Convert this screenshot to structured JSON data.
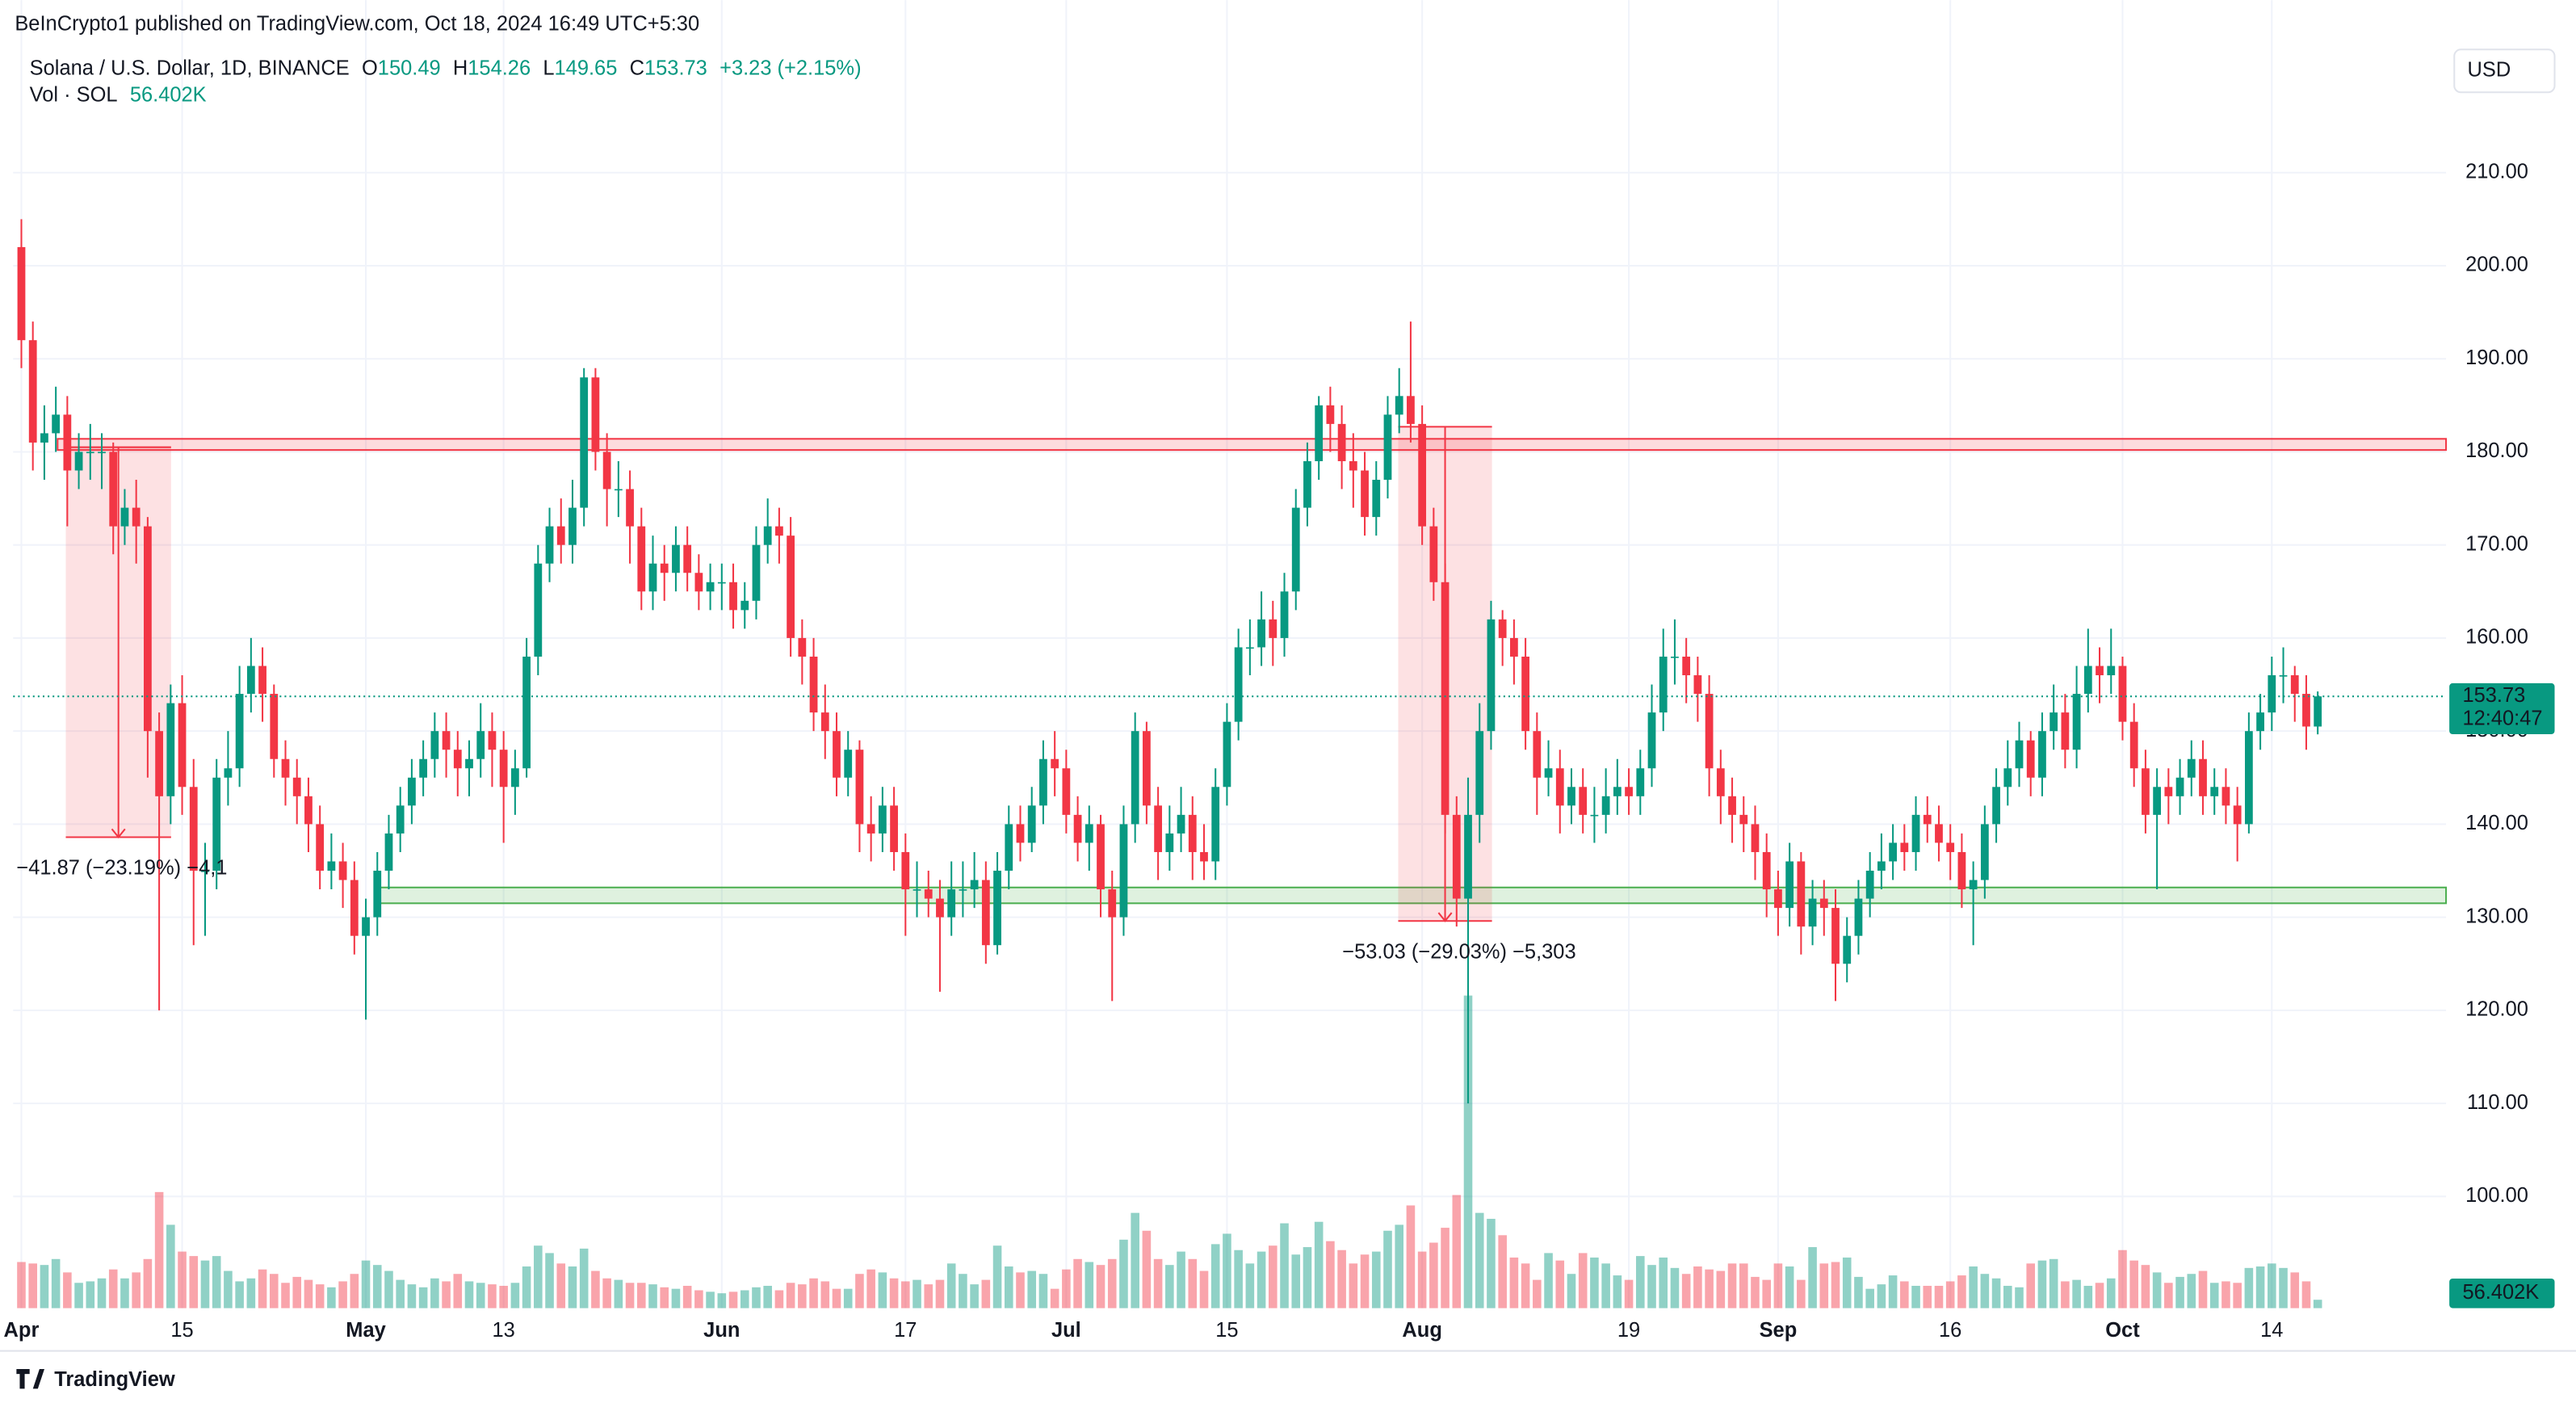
{
  "chart_data": {
    "type": "candlestick",
    "author_line": "BeInCrypto1 published on TradingView.com, Oct 18, 2024 16:49 UTC+5:30",
    "title": "Solana / U.S. Dollar, 1D, BINANCE",
    "ohlc_keys": [
      "O",
      "H",
      "L",
      "C"
    ],
    "change": "+3.23 (+2.15%)",
    "volume_title": "Vol · SOL",
    "volume_label": "56.402K",
    "currency": "USD",
    "countdown": "12:40:47",
    "brand": "TradingView",
    "up_color": "#089981",
    "down_color": "#f23645",
    "grid": true,
    "ylim": [
      88,
      225
    ],
    "yticks": [
      {
        "value": 100,
        "label": "100.00"
      },
      {
        "value": 110,
        "label": "110.00"
      },
      {
        "value": 120,
        "label": "120.00"
      },
      {
        "value": 130,
        "label": "130.00"
      },
      {
        "value": 140,
        "label": "140.00"
      },
      {
        "value": 150,
        "label": "150.00"
      },
      {
        "value": 160,
        "label": "160.00"
      },
      {
        "value": 170,
        "label": "170.00"
      },
      {
        "value": 180,
        "label": "180.00"
      },
      {
        "value": 190,
        "label": "190.00"
      },
      {
        "value": 200,
        "label": "200.00"
      },
      {
        "value": 210,
        "label": "210.00"
      }
    ],
    "categories": [
      "Apr",
      null,
      null,
      null,
      null,
      null,
      null,
      null,
      null,
      null,
      null,
      null,
      null,
      null,
      "15",
      null,
      null,
      null,
      null,
      null,
      null,
      null,
      null,
      null,
      null,
      null,
      null,
      null,
      null,
      null,
      "May",
      null,
      null,
      null,
      null,
      null,
      null,
      null,
      null,
      null,
      null,
      null,
      "13",
      null,
      null,
      null,
      null,
      null,
      null,
      null,
      null,
      null,
      null,
      null,
      null,
      null,
      null,
      null,
      null,
      null,
      null,
      "Jun",
      null,
      null,
      null,
      null,
      null,
      null,
      null,
      null,
      null,
      null,
      null,
      null,
      null,
      null,
      null,
      "17",
      null,
      null,
      null,
      null,
      null,
      null,
      null,
      null,
      null,
      null,
      null,
      null,
      null,
      "Jul",
      null,
      null,
      null,
      null,
      null,
      null,
      null,
      null,
      null,
      null,
      null,
      null,
      null,
      "15",
      null,
      null,
      null,
      null,
      null,
      null,
      null,
      null,
      null,
      null,
      null,
      null,
      null,
      null,
      null,
      null,
      "Aug",
      null,
      null,
      null,
      null,
      null,
      null,
      null,
      null,
      null,
      null,
      null,
      null,
      null,
      null,
      null,
      null,
      null,
      "19",
      null,
      null,
      null,
      null,
      null,
      null,
      null,
      null,
      null,
      null,
      null,
      null,
      "Sep",
      null,
      null,
      null,
      null,
      null,
      null,
      null,
      null,
      null,
      null,
      null,
      null,
      null,
      null,
      "16",
      null,
      null,
      null,
      null,
      null,
      null,
      null,
      null,
      null,
      null,
      null,
      null,
      null,
      null,
      "Oct",
      null,
      null,
      null,
      null,
      null,
      null,
      null,
      null,
      null,
      null,
      null,
      null,
      "14",
      null,
      null,
      null,
      null
    ],
    "open": [
      202,
      192,
      181,
      182,
      184,
      178,
      180,
      180,
      180,
      172,
      174,
      172,
      150,
      143,
      153,
      144,
      135,
      135,
      145,
      146,
      154,
      157,
      154,
      147,
      145,
      143,
      140,
      135,
      136,
      134,
      128,
      130,
      135,
      139,
      142,
      145,
      147,
      150,
      148,
      146,
      147,
      150,
      148,
      144,
      146,
      158,
      168,
      172,
      170,
      174,
      188,
      180,
      176,
      176,
      172,
      165,
      168,
      167,
      170,
      167,
      165,
      166,
      166,
      163,
      164,
      170,
      172,
      171,
      160,
      158,
      152,
      150,
      145,
      148,
      140,
      139,
      142,
      137,
      133,
      133,
      132,
      130,
      133,
      133,
      134,
      127,
      135,
      140,
      138,
      142,
      147,
      146,
      141,
      138,
      140,
      133,
      130,
      140,
      150,
      142,
      137,
      139,
      141,
      137,
      136,
      144,
      151,
      159,
      159,
      162,
      160,
      165,
      174,
      179,
      185,
      183,
      179,
      178,
      173,
      177,
      184,
      186,
      183,
      172,
      166,
      141,
      132,
      141,
      150,
      162,
      160,
      158,
      150,
      145,
      146,
      142,
      144,
      141,
      141,
      143,
      144,
      143,
      146,
      152,
      158,
      158,
      156,
      154,
      146,
      143,
      141,
      140,
      137,
      133,
      131,
      136,
      129,
      132,
      131,
      125,
      128,
      132,
      135,
      136,
      138,
      137,
      141,
      140,
      138,
      137,
      133,
      134,
      140,
      144,
      146,
      149,
      145,
      150,
      152,
      148,
      154,
      157,
      156,
      157,
      151,
      146,
      141,
      144,
      143,
      145,
      147,
      143,
      144,
      142,
      140,
      150,
      152,
      156,
      156,
      154,
      150.49
    ],
    "high": [
      205,
      194,
      185,
      187,
      186,
      182,
      183,
      182,
      181,
      176,
      177,
      173,
      152,
      155,
      156,
      147,
      138,
      147,
      150,
      157,
      160,
      159,
      155,
      149,
      147,
      145,
      142,
      139,
      138,
      136,
      132,
      137,
      141,
      144,
      147,
      149,
      152,
      152,
      150,
      149,
      153,
      152,
      150,
      148,
      160,
      170,
      174,
      175,
      177,
      189,
      189,
      182,
      179,
      178,
      174,
      171,
      170,
      172,
      172,
      169,
      168,
      168,
      168,
      166,
      172,
      175,
      174,
      173,
      162,
      160,
      155,
      152,
      150,
      149,
      143,
      144,
      144,
      139,
      136,
      135,
      134,
      136,
      136,
      137,
      136,
      137,
      142,
      142,
      144,
      149,
      150,
      148,
      143,
      142,
      141,
      135,
      142,
      152,
      151,
      144,
      142,
      144,
      143,
      140,
      146,
      153,
      161,
      162,
      165,
      164,
      167,
      176,
      181,
      186,
      187,
      185,
      182,
      180,
      179,
      186,
      189,
      194,
      185,
      174,
      168,
      143,
      145,
      153,
      164,
      163,
      162,
      160,
      152,
      149,
      148,
      146,
      146,
      144,
      146,
      147,
      146,
      148,
      155,
      161,
      162,
      160,
      158,
      156,
      148,
      145,
      143,
      142,
      139,
      135,
      138,
      137,
      134,
      134,
      133,
      130,
      134,
      137,
      139,
      140,
      140,
      143,
      143,
      142,
      140,
      139,
      136,
      142,
      146,
      149,
      151,
      150,
      152,
      155,
      154,
      157,
      161,
      159,
      161,
      158,
      153,
      148,
      146,
      146,
      147,
      149,
      149,
      146,
      146,
      144,
      152,
      154,
      158,
      159,
      157,
      156,
      154.26
    ],
    "low": [
      189,
      178,
      177,
      180,
      172,
      176,
      177,
      176,
      169,
      170,
      168,
      145,
      120,
      140,
      141,
      127,
      128,
      133,
      142,
      144,
      152,
      151,
      145,
      142,
      140,
      137,
      133,
      133,
      131,
      126,
      119,
      128,
      133,
      137,
      140,
      143,
      145,
      145,
      143,
      143,
      145,
      144,
      138,
      141,
      145,
      156,
      166,
      168,
      168,
      172,
      178,
      172,
      173,
      168,
      163,
      163,
      164,
      165,
      165,
      163,
      163,
      163,
      161,
      161,
      162,
      168,
      168,
      158,
      155,
      150,
      147,
      143,
      143,
      137,
      136,
      137,
      135,
      128,
      130,
      130,
      122,
      128,
      130,
      131,
      125,
      126,
      133,
      136,
      137,
      140,
      143,
      139,
      136,
      135,
      130,
      121,
      128,
      138,
      140,
      134,
      135,
      137,
      134,
      134,
      134,
      142,
      149,
      156,
      157,
      157,
      158,
      163,
      172,
      177,
      180,
      176,
      174,
      171,
      171,
      175,
      182,
      181,
      170,
      164,
      139,
      129,
      110,
      138,
      148,
      157,
      155,
      148,
      141,
      143,
      139,
      140,
      139,
      138,
      139,
      141,
      141,
      141,
      144,
      150,
      155,
      153,
      151,
      143,
      140,
      138,
      137,
      134,
      130,
      128,
      129,
      126,
      127,
      128,
      121,
      123,
      126,
      130,
      133,
      134,
      135,
      135,
      138,
      136,
      134,
      131,
      127,
      132,
      138,
      142,
      144,
      143,
      143,
      148,
      146,
      146,
      152,
      153,
      154,
      149,
      144,
      139,
      133,
      140,
      141,
      143,
      141,
      141,
      140,
      136,
      139,
      148,
      150,
      153,
      151,
      148,
      149.65
    ],
    "close": [
      192,
      181,
      182,
      184,
      178,
      180,
      180,
      180,
      172,
      174,
      172,
      150,
      143,
      153,
      144,
      135,
      135,
      145,
      146,
      154,
      157,
      154,
      147,
      145,
      143,
      140,
      135,
      136,
      134,
      128,
      130,
      135,
      139,
      142,
      145,
      147,
      150,
      148,
      146,
      147,
      150,
      148,
      144,
      146,
      158,
      168,
      172,
      170,
      174,
      188,
      180,
      176,
      176,
      172,
      165,
      168,
      167,
      170,
      167,
      165,
      166,
      166,
      163,
      164,
      170,
      172,
      171,
      160,
      158,
      152,
      150,
      145,
      148,
      140,
      139,
      142,
      137,
      133,
      133,
      132,
      130,
      133,
      133,
      134,
      127,
      135,
      140,
      138,
      142,
      147,
      146,
      141,
      138,
      140,
      133,
      130,
      140,
      150,
      142,
      137,
      139,
      141,
      137,
      136,
      144,
      151,
      159,
      159,
      162,
      160,
      165,
      174,
      179,
      185,
      183,
      179,
      178,
      173,
      177,
      184,
      186,
      183,
      172,
      166,
      141,
      132,
      141,
      150,
      162,
      160,
      158,
      150,
      145,
      146,
      142,
      144,
      141,
      141,
      143,
      144,
      143,
      146,
      152,
      158,
      158,
      156,
      154,
      146,
      143,
      141,
      140,
      137,
      133,
      131,
      136,
      129,
      132,
      131,
      125,
      128,
      132,
      135,
      136,
      138,
      137,
      141,
      140,
      138,
      137,
      133,
      134,
      140,
      144,
      146,
      149,
      145,
      150,
      152,
      148,
      154,
      157,
      156,
      157,
      151,
      146,
      141,
      144,
      143,
      145,
      147,
      143,
      144,
      142,
      140,
      150,
      152,
      156,
      156,
      154,
      150.49,
      153.73
    ],
    "volume": [
      310,
      300,
      290,
      330,
      240,
      170,
      180,
      200,
      260,
      200,
      240,
      330,
      780,
      560,
      380,
      350,
      320,
      350,
      250,
      180,
      200,
      260,
      230,
      170,
      210,
      190,
      160,
      140,
      180,
      230,
      320,
      290,
      250,
      190,
      160,
      140,
      200,
      180,
      230,
      180,
      170,
      160,
      150,
      170,
      280,
      420,
      370,
      300,
      280,
      400,
      250,
      200,
      190,
      170,
      170,
      160,
      140,
      130,
      150,
      120,
      110,
      100,
      110,
      120,
      140,
      150,
      120,
      170,
      160,
      200,
      180,
      130,
      130,
      230,
      260,
      240,
      200,
      180,
      190,
      160,
      190,
      300,
      230,
      160,
      190,
      420,
      280,
      240,
      250,
      230,
      130,
      260,
      330,
      310,
      290,
      330,
      460,
      640,
      520,
      330,
      290,
      380,
      330,
      250,
      430,
      500,
      390,
      300,
      380,
      420,
      570,
      360,
      410,
      580,
      450,
      390,
      300,
      360,
      380,
      520,
      560,
      690,
      380,
      440,
      540,
      760,
      2100,
      640,
      600,
      490,
      340,
      300,
      190,
      370,
      320,
      230,
      370,
      340,
      300,
      220,
      190,
      350,
      290,
      340,
      270,
      230,
      280,
      260,
      250,
      300,
      300,
      210,
      190,
      300,
      280,
      190,
      410,
      300,
      310,
      340,
      210,
      130,
      160,
      220,
      180,
      150,
      150,
      150,
      180,
      220,
      280,
      230,
      200,
      150,
      140,
      300,
      320,
      330,
      180,
      190,
      150,
      170,
      200,
      390,
      320,
      290,
      240,
      170,
      210,
      230,
      250,
      170,
      180,
      170,
      270,
      280,
      300,
      270,
      240,
      180,
      56.402
    ],
    "zones": [
      {
        "ylim": [
          180.2,
          181.4
        ],
        "color": "#f23645"
      },
      {
        "ylim": [
          131.5,
          133.2
        ],
        "color": "#4caf50"
      }
    ],
    "measures": [
      {
        "label": "−41.87 (−23.19%) −4,1",
        "ylim": [
          138.6,
          180.5
        ]
      },
      {
        "label": "−53.03 (−29.03%) −5,303",
        "ylim": [
          129.6,
          182.7
        ]
      }
    ]
  }
}
